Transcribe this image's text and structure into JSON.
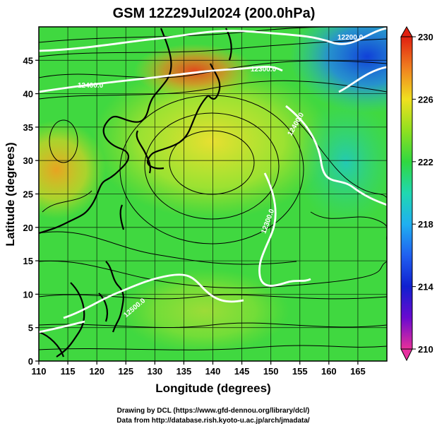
{
  "title": "GSM 12Z29Jul2024 (200.0hPa)",
  "xlabel": "Longitude (degrees)",
  "ylabel": "Latitude  (degrees)",
  "x_ticks": [
    "110",
    "115",
    "120",
    "125",
    "130",
    "135",
    "140",
    "145",
    "150",
    "155",
    "160",
    "165"
  ],
  "y_ticks": [
    "0",
    "5",
    "10",
    "15",
    "20",
    "25",
    "30",
    "35",
    "40",
    "45"
  ],
  "colorbar": {
    "ticks": [
      "230",
      "226",
      "222",
      "218",
      "214",
      "210"
    ],
    "colors": [
      "#e8309a",
      "#6a0ad0",
      "#1020d0",
      "#2080ff",
      "#20d8e0",
      "#30e060",
      "#90e020",
      "#f0e020",
      "#f08020",
      "#e02010"
    ]
  },
  "contour_labels": [
    "12200.0",
    "12400.0",
    "12300.0",
    "12400.0",
    "12300.0",
    "12500.0"
  ],
  "credits": {
    "line1": "Drawing by DCL (https://www.gfd-dennou.org/library/dcl/)",
    "line2": "Data from http://database.rish.kyoto-u.ac.jp/arch/jmadata/"
  },
  "chart_data": {
    "type": "heatmap",
    "title": "GSM 12Z29Jul2024 (200.0hPa)",
    "xlabel": "Longitude (degrees)",
    "ylabel": "Latitude  (degrees)",
    "xlim": [
      110,
      170
    ],
    "ylim": [
      0,
      50
    ],
    "colorbar_range": [
      210,
      230
    ],
    "colorbar_ticks": [
      210,
      214,
      218,
      222,
      226,
      230
    ],
    "grid": true,
    "overlays": [
      "geopotential height contours (white)",
      "streamlines (black)",
      "coastlines (black)"
    ]
  }
}
